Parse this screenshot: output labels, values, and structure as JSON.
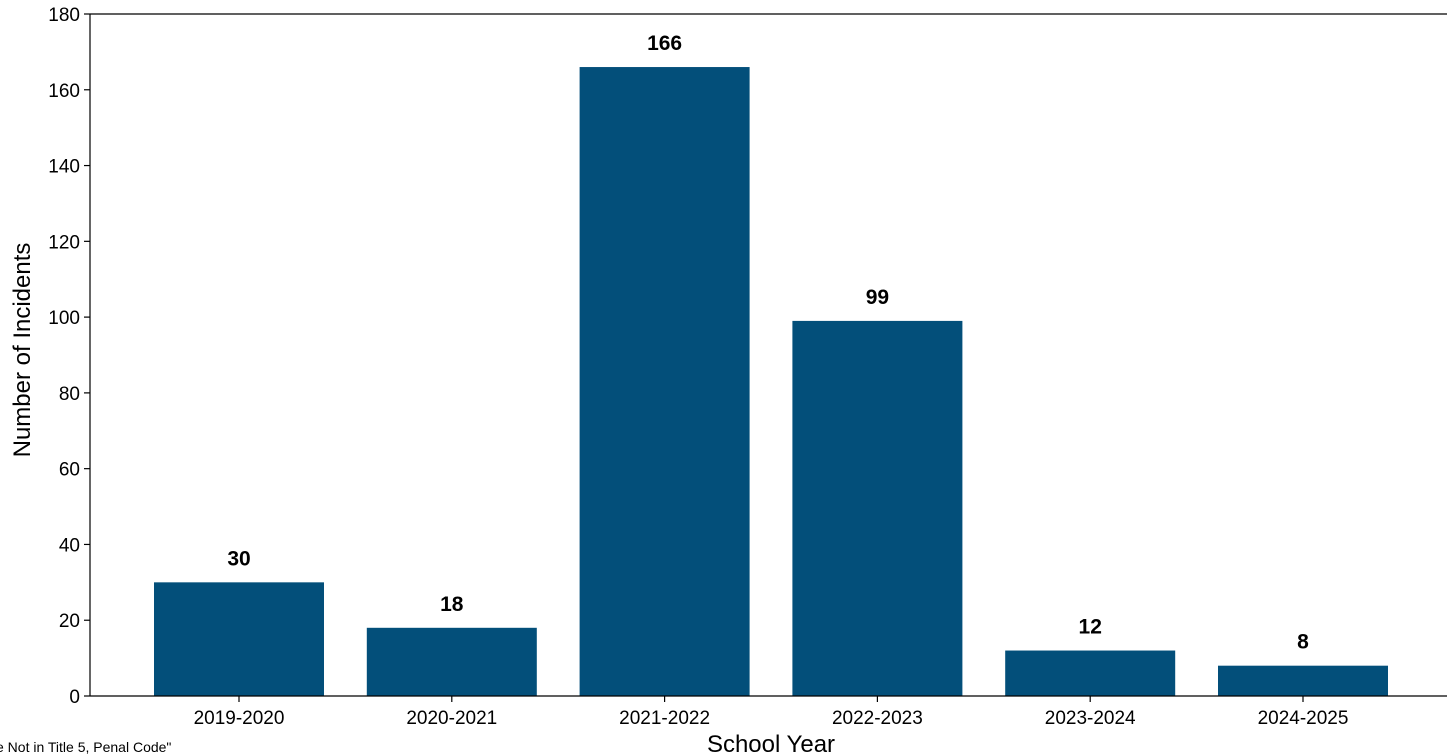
{
  "chart_data": {
    "type": "bar",
    "categories": [
      "2019-2020",
      "2020-2021",
      "2021-2022",
      "2022-2023",
      "2023-2024",
      "2024-2025"
    ],
    "values": [
      30,
      18,
      166,
      99,
      12,
      8
    ],
    "data_labels": [
      "30",
      "18",
      "166",
      "99",
      "12",
      "8"
    ],
    "title": "",
    "xlabel": "School Year",
    "ylabel": "Number of Incidents",
    "ylim": [
      0,
      180
    ],
    "yticks": [
      0,
      20,
      40,
      60,
      80,
      100,
      120,
      140,
      160,
      180
    ],
    "ytick_labels": [
      "0",
      "20",
      "40",
      "60",
      "80",
      "100",
      "120",
      "140",
      "160",
      "180"
    ],
    "bar_color": "#034f7a",
    "grid": false,
    "legend": "none"
  },
  "footnote": "e Not in Title 5, Penal Code\""
}
